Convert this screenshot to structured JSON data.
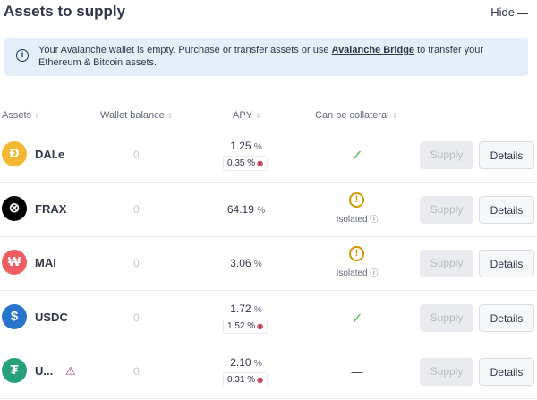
{
  "header": {
    "title": "Assets to supply",
    "hide_label": "Hide"
  },
  "info": {
    "text_before": "Your Avalanche wallet is empty. Purchase or transfer assets or use ",
    "link": "Avalanche Bridge",
    "text_after": " to transfer your Ethereum & Bitcoin assets."
  },
  "columns": [
    "Assets",
    "Wallet balance",
    "APY",
    "Can be collateral"
  ],
  "rows": [
    {
      "name": "DAI.e",
      "balance": "0",
      "apy": "1.25",
      "reward": "0.35",
      "collateral": "check",
      "icon_color": "#f4b731",
      "glyph": "Đ",
      "supply": "Supply",
      "details": "Details"
    },
    {
      "name": "FRAX",
      "balance": "0",
      "apy": "64.19",
      "reward": null,
      "collateral": "isolated",
      "isolated_label": "Isolated",
      "icon_color": "#000000",
      "glyph": "⊗",
      "supply": "Supply",
      "details": "Details"
    },
    {
      "name": "MAI",
      "balance": "0",
      "apy": "3.06",
      "reward": null,
      "collateral": "isolated",
      "isolated_label": "Isolated",
      "icon_color": "#ef5c61",
      "glyph": "₩",
      "supply": "Supply",
      "details": "Details"
    },
    {
      "name": "USDC",
      "balance": "0",
      "apy": "1.72",
      "reward": "1.52",
      "collateral": "check",
      "icon_color": "#2775ca",
      "glyph": "$",
      "supply": "Supply",
      "details": "Details"
    },
    {
      "name": "U...",
      "balance": "0",
      "apy": "2.10",
      "reward": "0.31",
      "collateral": "none",
      "warning": true,
      "icon_color": "#26a17b",
      "glyph": "₮",
      "supply": "Supply",
      "details": "Details"
    }
  ],
  "percent": "%",
  "check_glyph": "✓",
  "none_glyph": "—"
}
